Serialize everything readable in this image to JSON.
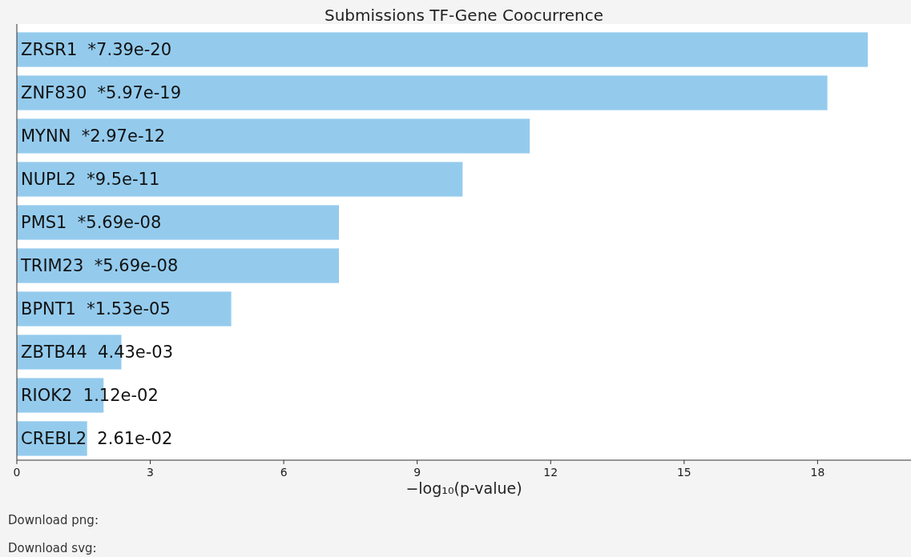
{
  "chart_data": {
    "type": "bar",
    "orientation": "horizontal",
    "title": "Submissions TF-Gene Coocurrence",
    "categories": [
      "ZRSR1  *7.39e-20",
      "ZNF830  *5.97e-19",
      "MYNN  *2.97e-12",
      "NUPL2  *9.5e-11",
      "PMS1  *5.69e-08",
      "TRIM23  *5.69e-08",
      "BPNT1  *1.53e-05",
      "ZBTB44  4.43e-03",
      "RIOK2  1.12e-02",
      "CREBL2  2.61e-02"
    ],
    "values": [
      19.13,
      18.22,
      11.53,
      10.02,
      7.24,
      7.24,
      4.82,
      2.35,
      1.95,
      1.58
    ],
    "color": "#94cbed",
    "xlim": [
      0,
      20.1
    ],
    "xticks": [
      0,
      3,
      6,
      9,
      12,
      15,
      18
    ],
    "xlabel": "−log₁₀(p-value)",
    "annotations": [
      "Download png:",
      "Download svg:"
    ]
  }
}
